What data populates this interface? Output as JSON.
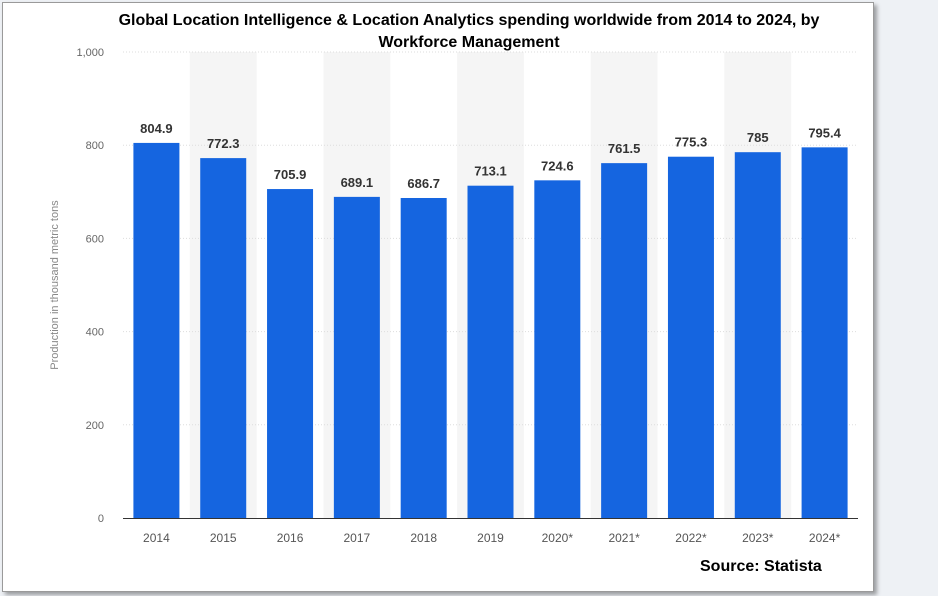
{
  "chart_data": {
    "type": "bar",
    "title_lines": [
      "Global Location Intelligence & Location Analytics spending worldwide from 2014 to 2024, by",
      "Workforce Management"
    ],
    "ylabel": "Production in thousand metric tons",
    "xlabel": "",
    "ylim": [
      0,
      1000
    ],
    "yticks": [
      0,
      200,
      400,
      600,
      800,
      1000
    ],
    "ytick_labels": [
      "0",
      "200",
      "400",
      "600",
      "800",
      "1,000"
    ],
    "categories": [
      "2014",
      "2015",
      "2016",
      "2017",
      "2018",
      "2019",
      "2020*",
      "2021*",
      "2022*",
      "2023*",
      "2024*"
    ],
    "values": [
      804.9,
      772.3,
      705.9,
      689.1,
      686.7,
      713.1,
      724.6,
      761.5,
      775.3,
      785,
      795.4
    ],
    "value_labels": [
      "804.9",
      "772.3",
      "705.9",
      "689.1",
      "686.7",
      "713.1",
      "724.6",
      "761.5",
      "775.3",
      "785",
      "795.4"
    ],
    "bar_color": "#1565e0",
    "band_color": "#f5f5f5",
    "grid": true
  },
  "source_text": "Source: Statista"
}
